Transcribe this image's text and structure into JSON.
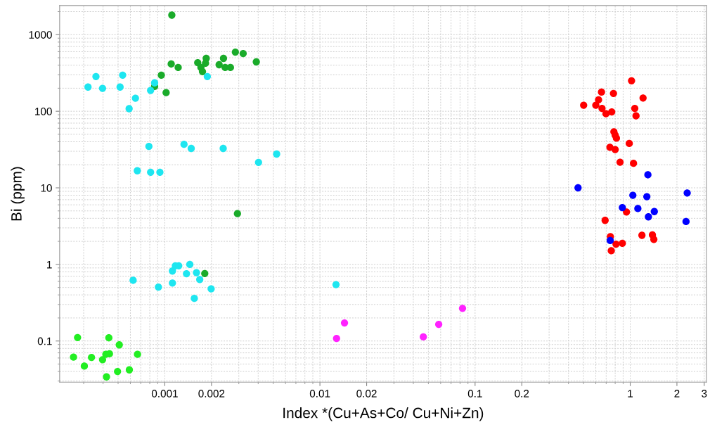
{
  "chart_data": {
    "type": "scatter",
    "xlabel": "Index *(Cu+As+Co/ Cu+Ni+Zn)",
    "ylabel": "Bi (ppm)",
    "log": "xy",
    "grid": true,
    "marker": "circle",
    "xlim": [
      0.00021,
      3.1
    ],
    "ylim": [
      0.029,
      2400
    ],
    "xticks": [
      0.001,
      0.002,
      0.01,
      0.02,
      0.1,
      0.2,
      1,
      2,
      3
    ],
    "yticks": [
      0.1,
      1,
      10,
      100,
      1000
    ],
    "series": [
      {
        "color": "#1aab2a",
        "x": [
          0.00111,
          0.0011,
          0.00122,
          0.00095,
          0.00086,
          0.00102,
          0.00163,
          0.00185,
          0.00183,
          0.00171,
          0.00175,
          0.00224,
          0.00239,
          0.00245,
          0.00265,
          0.00285,
          0.0032,
          0.00389,
          0.00294,
          0.00181
        ],
        "values": [
          1800,
          414,
          373,
          296,
          211,
          175,
          431,
          490,
          423,
          373,
          329,
          405,
          490,
          373,
          373,
          592,
          567,
          441,
          4.6,
          0.76
        ]
      },
      {
        "color": "#1ee6f0",
        "x": [
          0.00036,
          0.00032,
          0.000397,
          0.000535,
          0.000515,
          0.000647,
          0.000589,
          0.00086,
          0.00081,
          0.00188,
          0.00079,
          0.00133,
          0.00148,
          0.00238,
          0.00402,
          0.00526,
          0.000665,
          0.00081,
          0.00093,
          0.000625,
          0.00091,
          0.00112,
          0.00112,
          0.00117,
          0.00123,
          0.00145,
          0.00138,
          0.0016,
          0.00168,
          0.00199,
          0.00155,
          0.0127
        ],
        "values": [
          284,
          207,
          199,
          296,
          207,
          148,
          108,
          235,
          187,
          284,
          34.8,
          37,
          32.7,
          32.7,
          21.5,
          27.6,
          16.7,
          16.0,
          16.0,
          0.62,
          0.505,
          0.572,
          0.82,
          0.96,
          0.96,
          1.0,
          0.757,
          0.78,
          0.635,
          0.48,
          0.36,
          0.545
        ]
      },
      {
        "color": "#22ee22",
        "x": [
          0.000274,
          0.000436,
          0.000509,
          0.000258,
          0.000337,
          0.000303,
          0.000397,
          0.000417,
          0.00044,
          0.000667,
          0.000591,
          0.000496,
          0.000421
        ],
        "values": [
          0.111,
          0.11,
          0.089,
          0.0615,
          0.061,
          0.047,
          0.057,
          0.067,
          0.068,
          0.067,
          0.042,
          0.04,
          0.034
        ]
      },
      {
        "color": "#ff22ff",
        "x": [
          0.0128,
          0.0144,
          0.0464,
          0.0583,
          0.083
        ],
        "values": [
          0.108,
          0.172,
          0.113,
          0.165,
          0.267
        ]
      },
      {
        "color": "#ff0000",
        "x": [
          1.02,
          0.653,
          0.78,
          1.21,
          0.625,
          0.501,
          0.6,
          0.658,
          0.698,
          0.76,
          1.07,
          1.09,
          0.785,
          0.8,
          0.815,
          0.986,
          0.74,
          0.8,
          0.86,
          1.05,
          0.946,
          0.689,
          1.19,
          1.39,
          1.42,
          0.745,
          0.81,
          0.89,
          0.755
        ],
        "values": [
          250,
          178,
          171,
          149,
          141,
          120,
          120,
          109,
          92.7,
          98,
          109,
          87,
          54,
          48.7,
          44.5,
          38,
          33.9,
          31.6,
          21.6,
          20.9,
          4.84,
          3.76,
          2.4,
          2.43,
          2.12,
          2.3,
          1.84,
          1.89,
          1.51
        ]
      },
      {
        "color": "#0000ff",
        "x": [
          1.3,
          0.461,
          2.33,
          1.04,
          1.28,
          0.89,
          1.12,
          1.43,
          1.31,
          2.29,
          0.743
        ],
        "values": [
          14.8,
          10.0,
          8.57,
          8.0,
          7.67,
          5.52,
          5.37,
          4.9,
          4.18,
          3.63,
          2.05
        ]
      }
    ]
  }
}
